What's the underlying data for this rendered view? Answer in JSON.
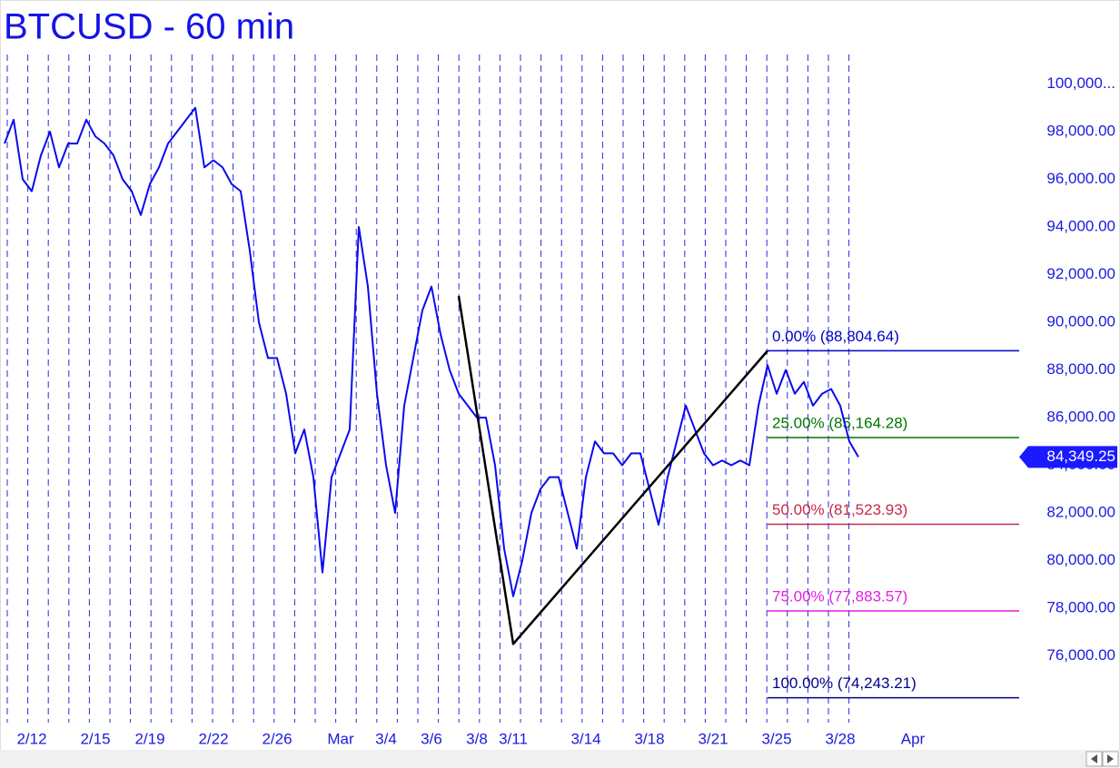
{
  "chart_data": {
    "type": "line",
    "title": "BTCUSD - 60 min",
    "categories": [
      null,
      null,
      null,
      "2/12",
      null,
      null,
      null,
      null,
      null,
      null,
      "2/15",
      null,
      null,
      null,
      null,
      null,
      "2/19",
      null,
      null,
      null,
      null,
      null,
      null,
      "2/22",
      null,
      null,
      null,
      null,
      null,
      null,
      "2/26",
      null,
      null,
      null,
      null,
      null,
      null,
      "Mar",
      null,
      null,
      null,
      null,
      "3/4",
      null,
      null,
      null,
      null,
      "3/6",
      null,
      null,
      null,
      null,
      "3/8",
      null,
      null,
      null,
      "3/11",
      null,
      null,
      null,
      null,
      null,
      null,
      null,
      "3/14",
      null,
      null,
      null,
      null,
      null,
      null,
      "3/18",
      null,
      null,
      null,
      null,
      null,
      null,
      "3/21",
      null,
      null,
      null,
      null,
      null,
      null,
      "3/25",
      null,
      null,
      null,
      null,
      null,
      null,
      "3/28",
      null,
      null,
      null,
      null,
      null,
      null,
      null,
      "Apr"
    ],
    "series": [
      {
        "color": "#0a0aee",
        "values": [
          97500,
          98500,
          96000,
          95500,
          97000,
          98000,
          96500,
          97500,
          97500,
          98500,
          97800,
          97500,
          97000,
          96000,
          95500,
          94500,
          95800,
          96500,
          97500,
          98000,
          98500,
          99000,
          96500,
          96800,
          96500,
          95800,
          95500,
          93000,
          90000,
          88500,
          88500,
          87000,
          84500,
          85500,
          83500,
          79500,
          83500,
          84500,
          85500,
          94000,
          91500,
          87000,
          84000,
          82000,
          86500,
          88500,
          90500,
          91500,
          89500,
          88000,
          87000,
          86500,
          86000,
          86000,
          84000,
          80500,
          78500,
          80000,
          82000,
          83000,
          83500,
          83500,
          82000,
          80500,
          83500,
          85000,
          84500,
          84500,
          84000,
          84500,
          84500,
          83000,
          81500,
          83500,
          85000,
          86500,
          85500,
          84500,
          84000,
          84200,
          84000,
          84200,
          84000,
          86500,
          88200,
          87000,
          88000,
          87000,
          87500,
          86500,
          87000,
          87200,
          86500,
          85000,
          84349.25,
          null,
          null,
          null,
          null,
          null,
          null
        ]
      },
      {
        "color": "#000000",
        "connect_gaps": true,
        "values": [
          null,
          null,
          null,
          null,
          null,
          null,
          null,
          null,
          null,
          null,
          null,
          null,
          null,
          null,
          null,
          null,
          null,
          null,
          null,
          null,
          null,
          null,
          null,
          null,
          null,
          null,
          null,
          null,
          null,
          null,
          null,
          null,
          null,
          null,
          null,
          null,
          null,
          null,
          null,
          null,
          null,
          null,
          null,
          null,
          null,
          null,
          null,
          null,
          null,
          null,
          91100,
          null,
          null,
          null,
          null,
          null,
          76500,
          null,
          null,
          null,
          null,
          null,
          null,
          null,
          null,
          null,
          null,
          null,
          null,
          null,
          null,
          null,
          null,
          null,
          null,
          null,
          null,
          null,
          null,
          null,
          null,
          null,
          null,
          null,
          88804.64,
          null,
          null,
          null,
          null,
          null,
          null,
          null,
          null,
          null,
          null,
          null,
          null,
          null,
          null,
          null,
          null
        ]
      }
    ],
    "levels": [
      {
        "label": "0.00% (88,804.64)",
        "value": 88804.64,
        "color": "#0000cc"
      },
      {
        "label": "25.00% (85,164.28)",
        "value": 85164.28,
        "color": "#007700"
      },
      {
        "label": "50.00% (81,523.93)",
        "value": 81523.93,
        "color": "#c8284a"
      },
      {
        "label": "75.00% (77,883.57)",
        "value": 77883.57,
        "color": "#e61ee6"
      },
      {
        "label": "100.00% (74,243.21)",
        "value": 74243.21,
        "color": "#000088"
      }
    ],
    "last_value": {
      "value": 84349.25,
      "label": "84,349.25"
    },
    "ylim": [
      73200,
      102000
    ],
    "yticks": [
      {
        "value": 76000,
        "label": "76,000.00"
      },
      {
        "value": 78000,
        "label": "78,000.00"
      },
      {
        "value": 80000,
        "label": "80,000.00"
      },
      {
        "value": 82000,
        "label": "82,000.00"
      },
      {
        "value": 84000,
        "label": "84,000.00"
      },
      {
        "value": 86000,
        "label": "86,000.00"
      },
      {
        "value": 88000,
        "label": "88,000.00"
      },
      {
        "value": 90000,
        "label": "90,000.00"
      },
      {
        "value": 92000,
        "label": "92,000.00"
      },
      {
        "value": 94000,
        "label": "94,000.00"
      },
      {
        "value": 96000,
        "label": "96,000.00"
      },
      {
        "value": 98000,
        "label": "98,000.00"
      },
      {
        "value": 100000,
        "label": "100,000..."
      }
    ]
  }
}
